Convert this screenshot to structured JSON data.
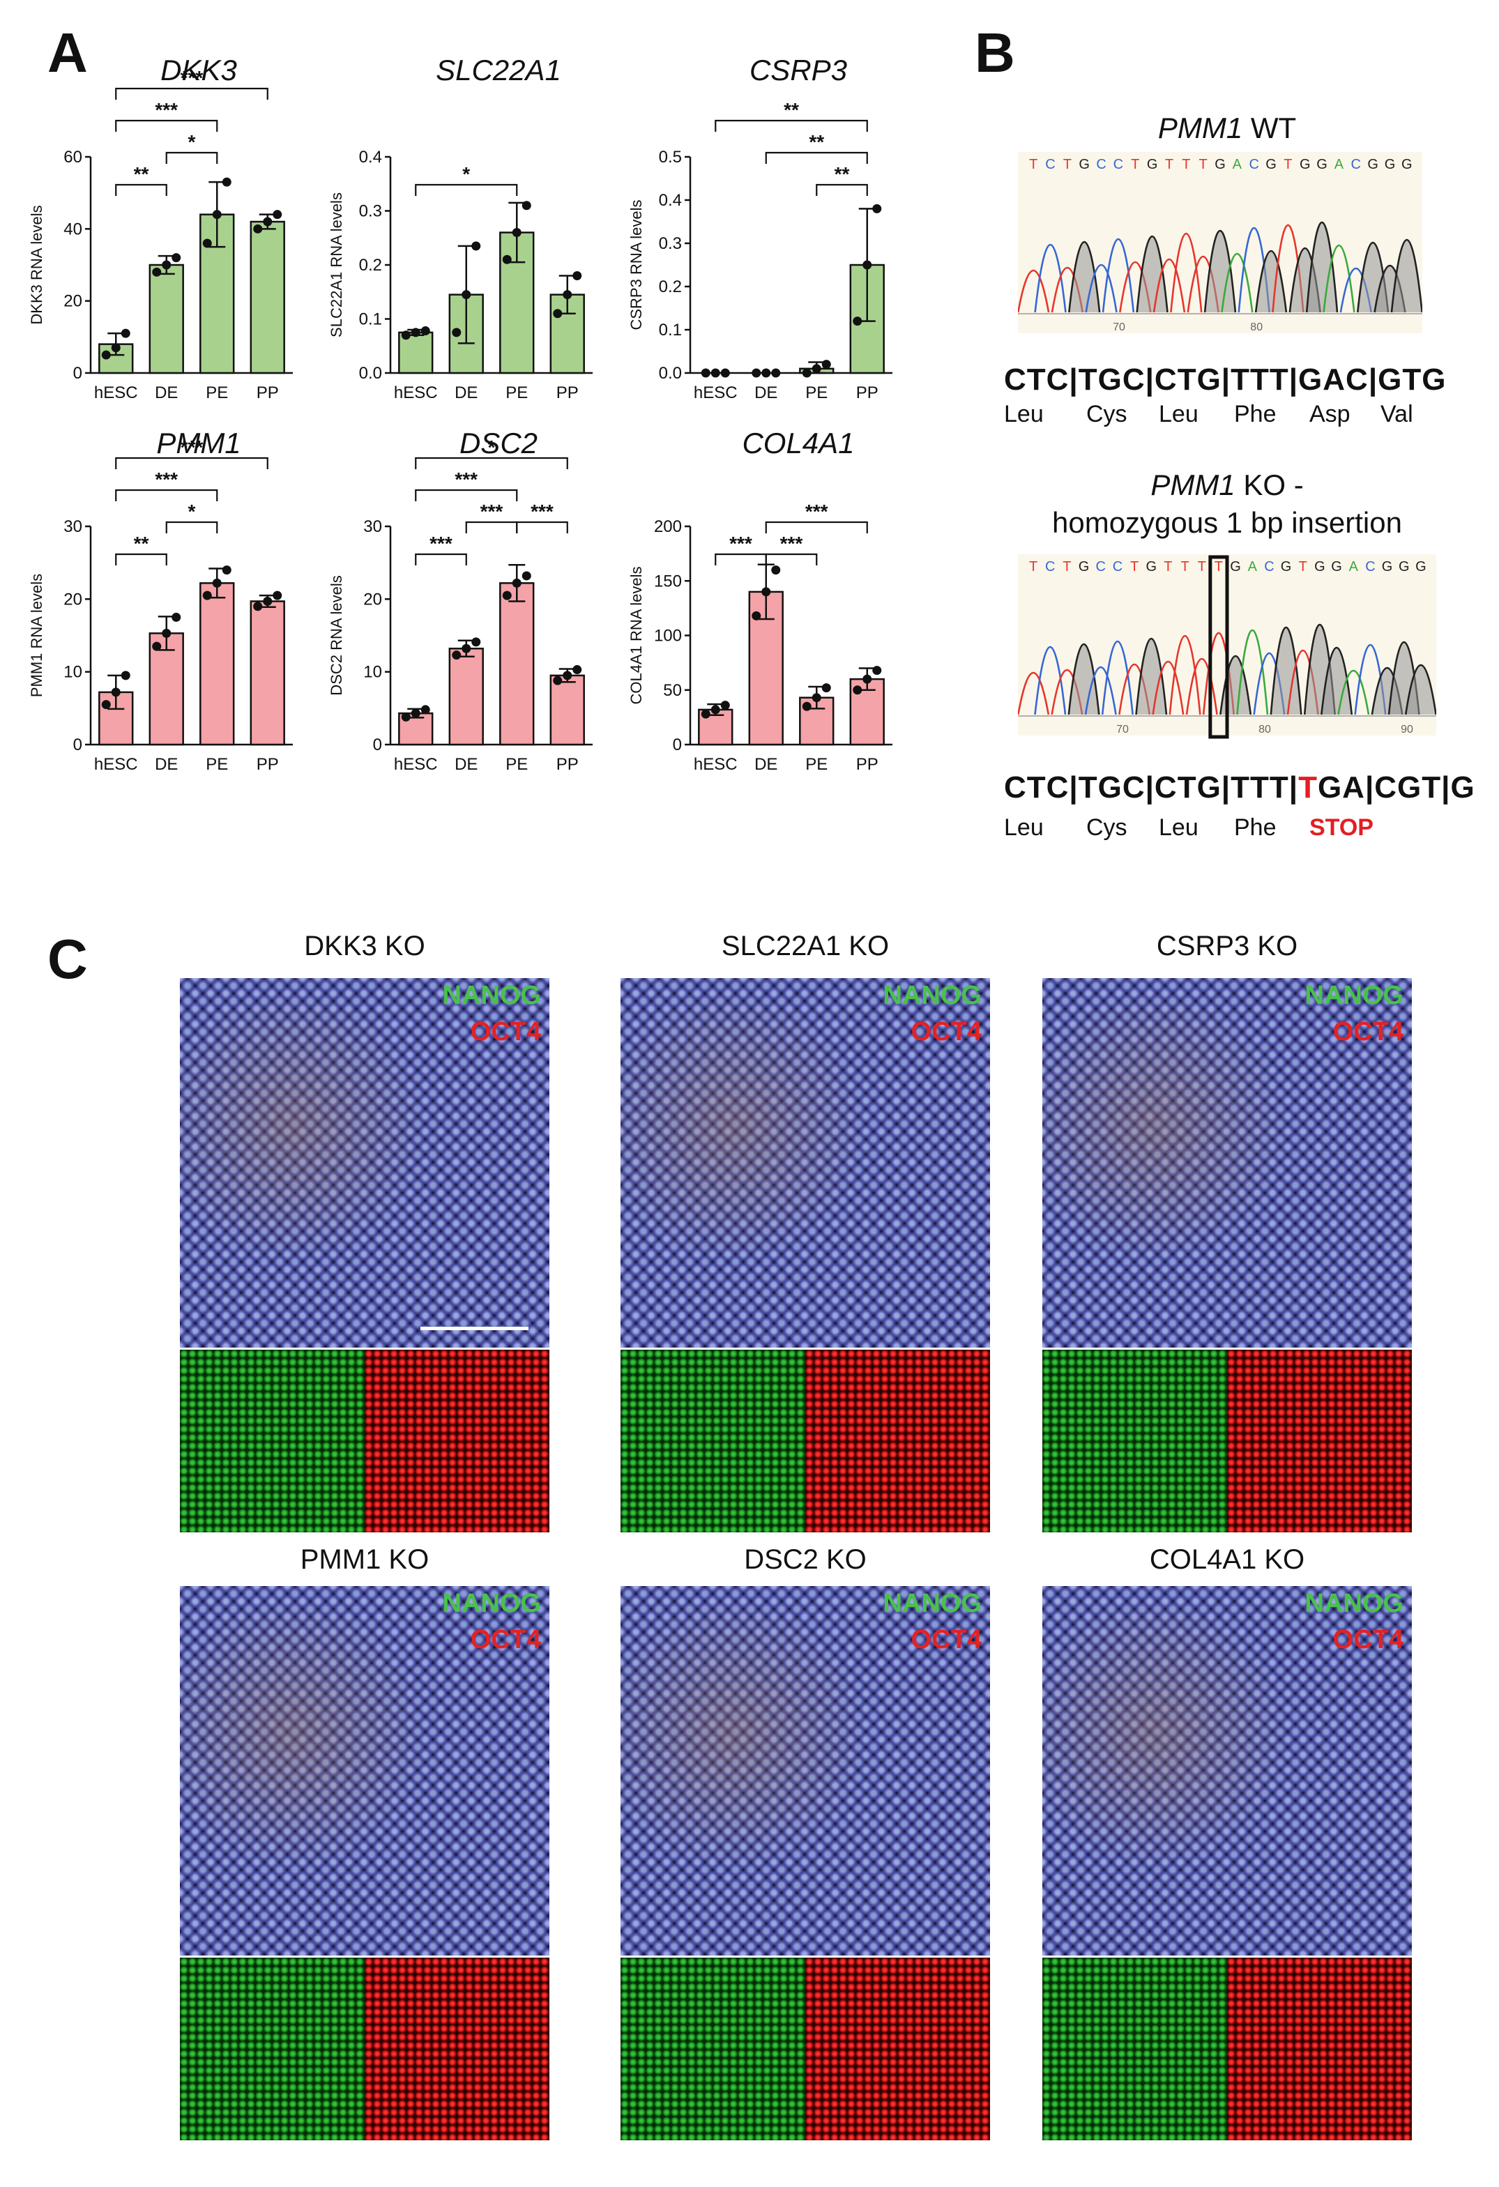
{
  "panel_labels": {
    "a": "A",
    "b": "B",
    "c": "C"
  },
  "chart_data": [
    {
      "type": "bar",
      "title": "DKK3",
      "ylabel": "DKK3 RNA levels",
      "categories": [
        "hESC",
        "DE",
        "PE",
        "PP"
      ],
      "values": [
        8,
        30,
        44,
        42
      ],
      "errors": [
        3,
        2.5,
        9,
        2
      ],
      "points": [
        [
          5,
          7,
          11
        ],
        [
          28,
          30,
          32
        ],
        [
          36,
          44,
          53
        ],
        [
          40,
          42,
          44
        ]
      ],
      "ylim": [
        0,
        60
      ],
      "yticks": [
        0,
        20,
        40,
        60
      ],
      "color": "#a9d18e",
      "grid": false,
      "sig": [
        {
          "label": "**",
          "from": 0,
          "to": 1,
          "level": 0
        },
        {
          "label": "*",
          "from": 1,
          "to": 2,
          "level": 1
        },
        {
          "label": "***",
          "from": 0,
          "to": 2,
          "level": 2
        },
        {
          "label": "***",
          "from": 0,
          "to": 3,
          "level": 3
        }
      ]
    },
    {
      "type": "bar",
      "title": "SLC22A1",
      "ylabel": "SLC22A1 RNA levels",
      "categories": [
        "hESC",
        "DE",
        "PE",
        "PP"
      ],
      "values": [
        0.075,
        0.145,
        0.26,
        0.145
      ],
      "errors": [
        0.005,
        0.09,
        0.055,
        0.035
      ],
      "points": [
        [
          0.07,
          0.075,
          0.078
        ],
        [
          0.075,
          0.145,
          0.235
        ],
        [
          0.21,
          0.26,
          0.31
        ],
        [
          0.11,
          0.145,
          0.18
        ]
      ],
      "ylim": [
        0,
        0.4
      ],
      "yticks": [
        0.0,
        0.1,
        0.2,
        0.3,
        0.4
      ],
      "color": "#a9d18e",
      "grid": false,
      "sig": [
        {
          "label": "*",
          "from": 0,
          "to": 2,
          "level": 0
        }
      ]
    },
    {
      "type": "bar",
      "title": "CSRP3",
      "ylabel": "CSRP3 RNA levels",
      "categories": [
        "hESC",
        "DE",
        "PE",
        "PP"
      ],
      "values": [
        0,
        0,
        0.01,
        0.25
      ],
      "errors": [
        0,
        0,
        0.015,
        0.13
      ],
      "points": [
        [
          0,
          0,
          0
        ],
        [
          0,
          0,
          0
        ],
        [
          0,
          0.01,
          0.02
        ],
        [
          0.12,
          0.25,
          0.38
        ]
      ],
      "ylim": [
        0,
        0.5
      ],
      "yticks": [
        0.0,
        0.1,
        0.2,
        0.3,
        0.4,
        0.5
      ],
      "color": "#a9d18e",
      "grid": false,
      "sig": [
        {
          "label": "**",
          "from": 2,
          "to": 3,
          "level": 0
        },
        {
          "label": "**",
          "from": 1,
          "to": 3,
          "level": 1
        },
        {
          "label": "**",
          "from": 0,
          "to": 3,
          "level": 2
        }
      ]
    },
    {
      "type": "bar",
      "title": "PMM1",
      "ylabel": "PMM1 RNA levels",
      "categories": [
        "hESC",
        "DE",
        "PE",
        "PP"
      ],
      "values": [
        7.2,
        15.3,
        22.2,
        19.7
      ],
      "errors": [
        2.3,
        2.3,
        2.0,
        0.8
      ],
      "points": [
        [
          5.5,
          7.2,
          9.5
        ],
        [
          13.5,
          15.3,
          17.5
        ],
        [
          20.5,
          22.2,
          24
        ],
        [
          19,
          19.7,
          20.5
        ]
      ],
      "ylim": [
        0,
        30
      ],
      "yticks": [
        0,
        10,
        20,
        30
      ],
      "color": "#f4a3a8",
      "grid": false,
      "sig": [
        {
          "label": "**",
          "from": 0,
          "to": 1,
          "level": 0
        },
        {
          "label": "*",
          "from": 1,
          "to": 2,
          "level": 1
        },
        {
          "label": "***",
          "from": 0,
          "to": 2,
          "level": 2
        },
        {
          "label": "***",
          "from": 0,
          "to": 3,
          "level": 3
        }
      ]
    },
    {
      "type": "bar",
      "title": "DSC2",
      "ylabel": "DSC2 RNA levels",
      "categories": [
        "hESC",
        "DE",
        "PE",
        "PP"
      ],
      "values": [
        4.3,
        13.2,
        22.2,
        9.5
      ],
      "errors": [
        0.6,
        1.1,
        2.5,
        0.9
      ],
      "points": [
        [
          3.8,
          4.3,
          4.8
        ],
        [
          12.3,
          13.2,
          14.1
        ],
        [
          20.5,
          22.2,
          23.2
        ],
        [
          8.8,
          9.5,
          10.3
        ]
      ],
      "ylim": [
        0,
        30
      ],
      "yticks": [
        0,
        10,
        20,
        30
      ],
      "color": "#f4a3a8",
      "grid": false,
      "sig": [
        {
          "label": "***",
          "from": 0,
          "to": 1,
          "level": 0
        },
        {
          "label": "***",
          "from": 1,
          "to": 2,
          "level": 1
        },
        {
          "label": "***",
          "from": 2,
          "to": 3,
          "level": 1
        },
        {
          "label": "***",
          "from": 0,
          "to": 2,
          "level": 2
        },
        {
          "label": "*",
          "from": 0,
          "to": 3,
          "level": 3
        }
      ]
    },
    {
      "type": "bar",
      "title": "COL4A1",
      "ylabel": "COL4A1 RNA levels",
      "categories": [
        "hESC",
        "DE",
        "PE",
        "PP"
      ],
      "values": [
        32,
        140,
        43,
        60
      ],
      "errors": [
        5,
        25,
        10,
        10
      ],
      "points": [
        [
          28,
          32,
          36
        ],
        [
          118,
          140,
          160
        ],
        [
          35,
          43,
          52
        ],
        [
          50,
          60,
          68
        ]
      ],
      "ylim": [
        0,
        200
      ],
      "yticks": [
        0,
        50,
        100,
        150,
        200
      ],
      "color": "#f4a3a8",
      "grid": false,
      "sig": [
        {
          "label": "***",
          "from": 0,
          "to": 1,
          "level": 0
        },
        {
          "label": "***",
          "from": 1,
          "to": 2,
          "level": 0
        },
        {
          "label": "***",
          "from": 1,
          "to": 3,
          "level": 1
        }
      ]
    }
  ],
  "sequencing": {
    "wt": {
      "title_gene": "PMM1",
      "title_rest": " WT",
      "trace_bases": "T C T G C C T G T T T G A C G T G G A C G G G",
      "axis_ticks": [
        "70",
        "80"
      ],
      "codons": "CTC|TGC|CTG|TTT|GAC|GTG",
      "amino_acids": [
        "Leu",
        "Cys",
        "Leu",
        "Phe",
        "Asp",
        "Val"
      ]
    },
    "ko": {
      "title_gene": "PMM1",
      "title_rest": " KO -",
      "subtitle": "homozygous 1 bp insertion",
      "trace_bases": "T C T G C C T G T T T T G A C G T G G A C G G G",
      "axis_ticks": [
        "70",
        "80",
        "90"
      ],
      "codons_before": "CTC|TGC|CTG|TTT|",
      "codons_highlight": "T",
      "codons_after": "GA|CGT|G",
      "amino_acids": [
        "Leu",
        "Cys",
        "Leu",
        "Phe"
      ],
      "stop_label": "STOP",
      "highlight_color": "#e31e24"
    }
  },
  "microscopy": {
    "channel_labels": {
      "nanog": "NANOG",
      "oct4": "OCT4"
    },
    "colors": {
      "nanog": "#49c24a",
      "oct4": "#e32222"
    },
    "panels": [
      {
        "title": "DKK3 KO"
      },
      {
        "title": "SLC22A1 KO"
      },
      {
        "title": "CSRP3 KO"
      },
      {
        "title": "PMM1 KO"
      },
      {
        "title": "DSC2 KO"
      },
      {
        "title": "COL4A1 KO"
      }
    ]
  }
}
